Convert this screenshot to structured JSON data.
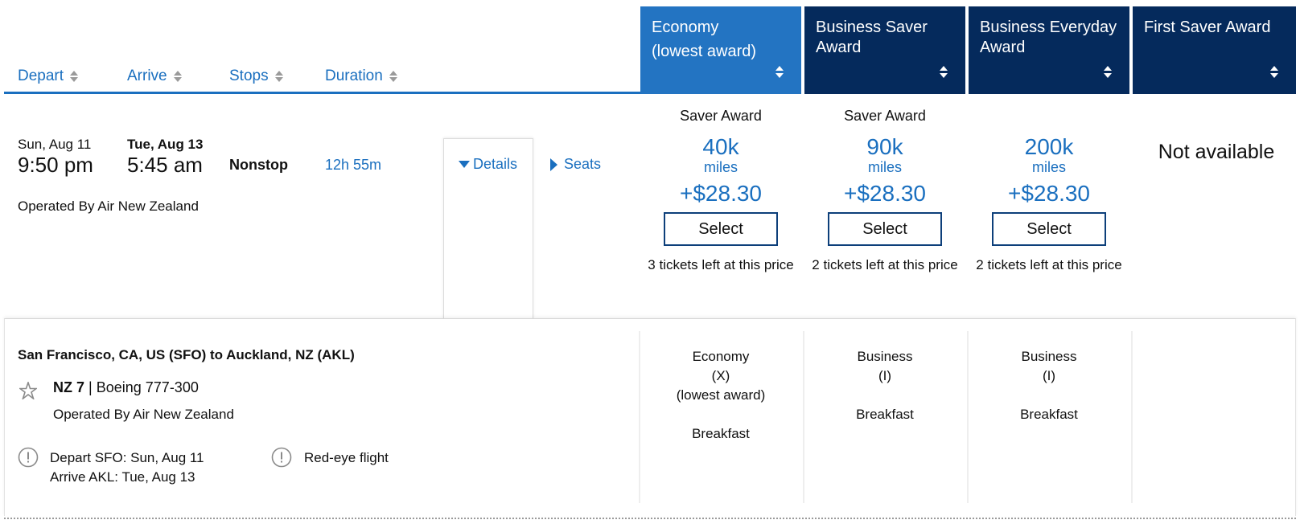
{
  "sort_headers": [
    {
      "label": "Depart"
    },
    {
      "label": "Arrive"
    },
    {
      "label": "Stops"
    },
    {
      "label": "Duration"
    }
  ],
  "fare_columns": [
    {
      "line1": "Economy",
      "line2": "(lowest award)"
    },
    {
      "line1": "Business Saver",
      "line2": "Award"
    },
    {
      "line1": "Business Everyday",
      "line2": "Award"
    },
    {
      "line1": "First Saver Award",
      "line2": ""
    }
  ],
  "flight": {
    "depart_date": "Sun, Aug 11",
    "depart_time": "9:50 pm",
    "arrive_date": "Tue, Aug 13",
    "arrive_time": "5:45 am",
    "stops": "Nonstop",
    "duration": "12h 55m",
    "operated_by": "Operated By Air New Zealand",
    "details_label": "Details",
    "seats_label": "Seats"
  },
  "prices": [
    {
      "award_type": "Saver Award",
      "miles": "40k",
      "miles_unit": "miles",
      "fee": "+$28.30",
      "select_label": "Select",
      "tickets": "3 tickets left at this price"
    },
    {
      "award_type": "Saver Award",
      "miles": "90k",
      "miles_unit": "miles",
      "fee": "+$28.30",
      "select_label": "Select",
      "tickets": "2 tickets left at this price"
    },
    {
      "award_type": "",
      "miles": "200k",
      "miles_unit": "miles",
      "fee": "+$28.30",
      "select_label": "Select",
      "tickets": "2 tickets left at this price"
    }
  ],
  "not_available": "Not available",
  "details_panel": {
    "route": "San Francisco, CA, US (SFO) to Auckland, NZ (AKL)",
    "flight_number": "NZ 7",
    "separator": "|",
    "aircraft": "Boeing 777-300",
    "operated_by": "Operated By Air New Zealand",
    "alert_depart": "Depart SFO: Sun, Aug 11",
    "alert_arrive": "Arrive AKL: Tue, Aug 13",
    "alert_redeye": "Red-eye flight",
    "cabins": [
      {
        "cabin": "Economy",
        "code": "(X)",
        "note": "(lowest award)",
        "meal": "Breakfast"
      },
      {
        "cabin": "Business",
        "code": "(I)",
        "note": "",
        "meal": "Breakfast"
      },
      {
        "cabin": "Business",
        "code": "(I)",
        "note": "",
        "meal": "Breakfast"
      }
    ]
  },
  "colors": {
    "link_blue": "#1a6fbf",
    "active_header": "#2374c2",
    "dark_header": "#052a5c"
  },
  "icons": {
    "sort": "sort-arrows-icon",
    "details": "caret-down-icon",
    "seats": "caret-right-icon",
    "airline": "star-alliance-logo",
    "alert": "alert-circle-icon"
  }
}
